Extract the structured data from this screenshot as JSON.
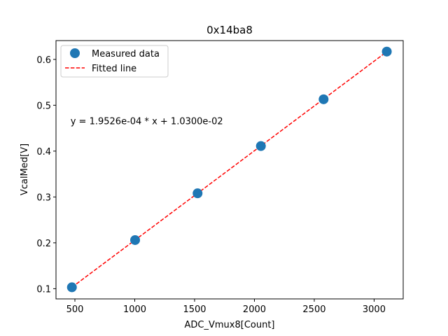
{
  "chart_data": {
    "type": "scatter",
    "title": "0x14ba8",
    "xlabel": "ADC_Vmux8[Count]",
    "ylabel": "VcalMed[V]",
    "xlim": [
      342,
      3243
    ],
    "ylim": [
      0.0777,
      0.641
    ],
    "xticks": [
      500,
      1000,
      1500,
      2000,
      2500,
      3000
    ],
    "yticks": [
      0.1,
      0.2,
      0.3,
      0.4,
      0.5,
      0.6
    ],
    "xtick_labels": [
      "500",
      "1000",
      "1500",
      "2000",
      "2500",
      "3000"
    ],
    "ytick_labels": [
      "0.1",
      "0.2",
      "0.3",
      "0.4",
      "0.5",
      "0.6"
    ],
    "grid": false,
    "legend_position": "top-left",
    "series": [
      {
        "name": "Measured data",
        "kind": "scatter",
        "color": "#1f77b4",
        "x": [
          475,
          1003,
          1525,
          2054,
          2578,
          3106
        ],
        "y": [
          0.103,
          0.206,
          0.308,
          0.411,
          0.513,
          0.617
        ]
      },
      {
        "name": "Fitted line",
        "kind": "line",
        "style": "dashed",
        "color": "#ff0000",
        "slope": 0.00019526,
        "intercept": 0.0103,
        "x_range": [
          475,
          3106
        ]
      }
    ],
    "annotations": [
      {
        "text": "y = 1.9526e-04 * x + 1.0300e-02",
        "x": 475,
        "y": 0.466
      }
    ]
  }
}
